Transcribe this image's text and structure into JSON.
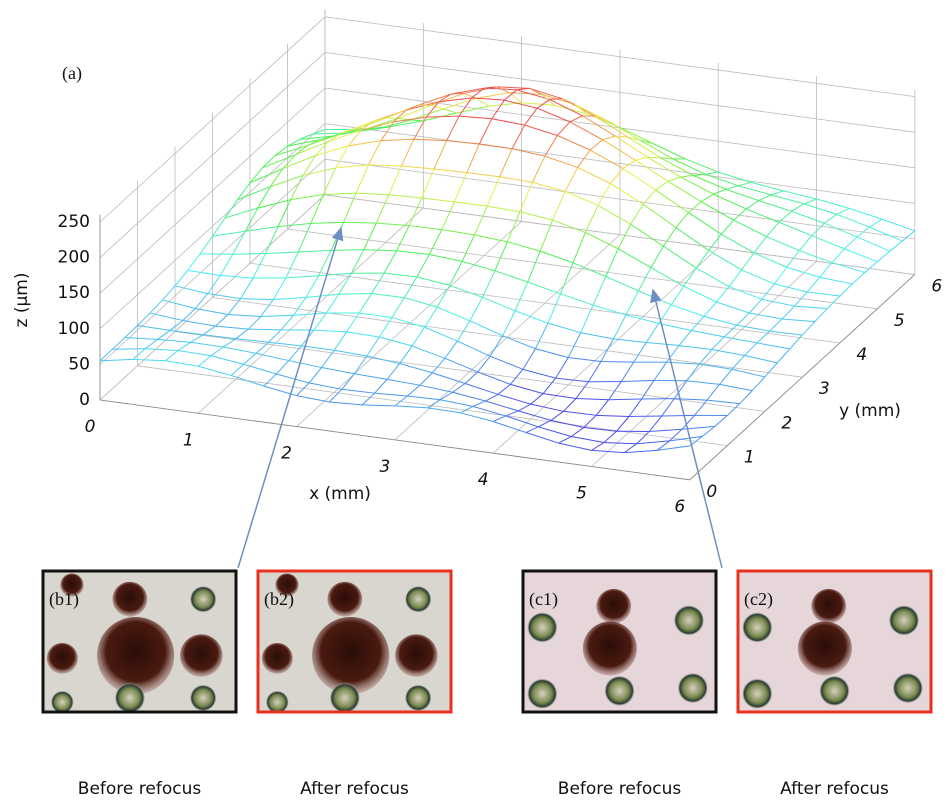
{
  "panel_label": "(a)",
  "z_label": "z (μm)",
  "x_label": "x (mm)",
  "y_label": "y (mm)",
  "z_ticks": [
    0,
    50,
    100,
    150,
    200,
    250
  ],
  "x_ticks": [
    0,
    1,
    2,
    3,
    4,
    5,
    6
  ],
  "y_ticks": [
    0,
    1,
    2,
    3,
    4,
    5,
    6
  ],
  "images": [
    {
      "label": "(b1)",
      "caption": "Before refocus"
    },
    {
      "label": "(b2)",
      "caption": "After refocus"
    },
    {
      "label": "(c1)",
      "caption": "Before refocus"
    },
    {
      "label": "(c2)",
      "caption": "After refocus"
    }
  ]
}
